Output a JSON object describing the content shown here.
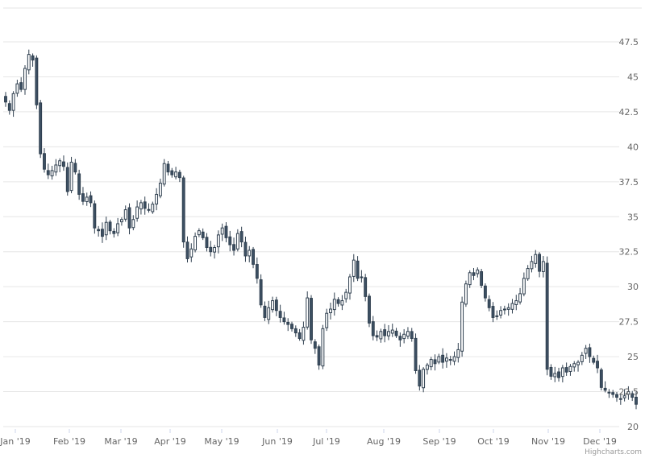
{
  "chart_data": {
    "type": "candlestick",
    "title": "",
    "xlabel": "",
    "ylabel": "",
    "ylim": [
      20,
      47.5
    ],
    "y_ticks": [
      "20",
      "22.5",
      "25",
      "27.5",
      "30",
      "32.5",
      "35",
      "37.5",
      "40",
      "42.5",
      "45",
      "47.5"
    ],
    "x_ticks": [
      "Jan '19",
      "Feb '19",
      "Mar '19",
      "Apr '19",
      "May '19",
      "Jun '19",
      "Jul '19",
      "Aug '19",
      "Sep '19",
      "Oct '19",
      "Nov '19",
      "Dec '19"
    ],
    "grid": true,
    "credits": "Highcharts.com",
    "colors": {
      "up": "#ffffff",
      "down": "#3e5164",
      "line": "#2f3f4f",
      "grid": "#e6e6e6"
    },
    "monthly_close": [
      {
        "month": "Jan '19",
        "open": 43.0,
        "close": 39.0
      },
      {
        "month": "Feb '19",
        "open": 39.0,
        "close": 33.5
      },
      {
        "month": "Mar '19",
        "open": 33.5,
        "close": 38.0
      },
      {
        "month": "Apr '19",
        "open": 38.0,
        "close": 33.0
      },
      {
        "month": "May '19",
        "open": 33.0,
        "close": 27.5
      },
      {
        "month": "Jun '19",
        "open": 27.5,
        "close": 28.5
      },
      {
        "month": "Jul '19",
        "open": 28.5,
        "close": 26.0
      },
      {
        "month": "Aug '19",
        "open": 26.0,
        "close": 24.5
      },
      {
        "month": "Sep '19",
        "open": 24.5,
        "close": 29.0
      },
      {
        "month": "Oct '19",
        "open": 29.0,
        "close": 31.0
      },
      {
        "month": "Nov '19",
        "open": 24.0,
        "close": 24.5
      },
      {
        "month": "Dec '19",
        "open": 24.5,
        "close": 23.0
      }
    ],
    "series": [
      {
        "values": [
          43.2,
          42.6,
          43.8,
          44.5,
          44.1,
          45.6,
          46.6,
          46.2,
          43.0,
          39.5,
          38.4,
          38.0,
          38.3,
          38.7,
          39.0,
          38.6,
          36.8,
          38.9,
          38.2,
          36.6,
          36.1,
          36.4,
          36.0,
          34.2,
          34.0,
          33.6,
          34.6,
          34.0,
          33.8,
          34.5,
          34.8,
          35.5,
          34.2,
          34.8,
          35.7,
          36.0,
          35.6,
          35.5,
          35.9,
          36.6,
          37.4,
          38.8,
          38.2,
          38.0,
          38.2,
          37.8,
          33.2,
          32.0,
          32.7,
          33.6,
          34.0,
          33.5,
          32.8,
          32.5,
          32.8,
          33.7,
          34.2,
          33.5,
          33.0,
          32.6,
          33.8,
          33.2,
          32.2,
          32.6,
          31.6,
          30.6,
          28.7,
          27.8,
          28.5,
          29.0,
          28.3,
          27.8,
          27.5,
          27.3,
          27.0,
          26.7,
          26.3,
          27.1,
          29.2,
          26.2,
          25.6,
          24.4,
          27.0,
          28.1,
          28.4,
          29.1,
          28.8,
          29.0,
          29.6,
          30.7,
          31.9,
          30.6,
          30.7,
          29.3,
          27.4,
          26.5,
          26.4,
          26.8,
          26.5,
          26.8,
          26.9,
          26.5,
          26.2,
          26.6,
          26.8,
          26.3,
          24.0,
          22.9,
          24.1,
          24.4,
          24.8,
          24.5,
          25.0,
          24.6,
          24.9,
          24.8,
          25.0,
          25.5,
          28.9,
          30.2,
          31.0,
          30.8,
          31.2,
          30.1,
          29.2,
          28.5,
          27.8,
          27.9,
          28.3,
          28.4,
          28.5,
          28.8,
          29.0,
          29.5,
          30.6,
          31.3,
          31.8,
          32.3,
          31.1,
          31.8,
          24.1,
          23.6,
          23.8,
          23.5,
          24.2,
          23.9,
          24.3,
          24.5,
          24.6,
          25.1,
          25.6,
          25.0,
          24.6,
          24.2,
          22.8,
          22.6,
          22.4,
          22.3,
          22.1,
          22.0,
          22.2,
          22.5,
          22.1,
          21.6
        ]
      }
    ]
  }
}
